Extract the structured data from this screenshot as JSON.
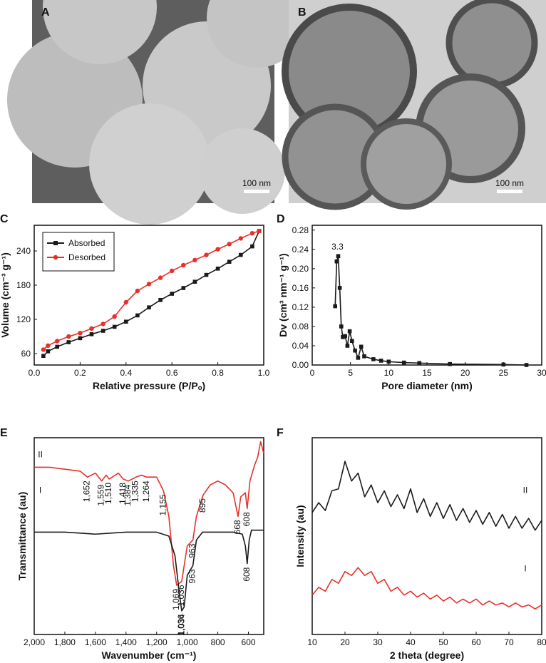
{
  "panels": {
    "A": {
      "letter": "A",
      "scale_bar": "100 nm"
    },
    "B": {
      "letter": "B",
      "scale_bar": "100 nm"
    }
  },
  "chart_data": [
    {
      "type": "line",
      "label": "C",
      "xlabel": "Relative pressure (P/Pₒ)",
      "ylabel": "Volume (cm⁻³ g⁻¹)",
      "xlim": [
        0,
        1
      ],
      "ylim": [
        40,
        285
      ],
      "xticks": [
        {
          "value": 0,
          "label": "0.0"
        },
        0.2,
        0.4,
        0.6,
        0.8,
        {
          "value": 1,
          "label": "1.0"
        }
      ],
      "yticks": [
        60,
        120,
        180,
        240
      ],
      "legend": "upper left",
      "x": [
        0.04,
        0.06,
        0.1,
        0.15,
        0.2,
        0.25,
        0.3,
        0.35,
        0.4,
        0.45,
        0.5,
        0.55,
        0.6,
        0.65,
        0.7,
        0.75,
        0.8,
        0.85,
        0.9,
        0.95,
        0.98
      ],
      "series": [
        {
          "name": "Absorbed",
          "color": "#1a1a1a",
          "marker": "square",
          "values": [
            56,
            64,
            72,
            80,
            87,
            94,
            100,
            107,
            116,
            127,
            141,
            154,
            165,
            175,
            186,
            198,
            209,
            221,
            233,
            248,
            275
          ]
        },
        {
          "name": "Desorbed",
          "color": "#e8302a",
          "marker": "circle",
          "values": [
            67,
            74,
            82,
            90,
            96,
            104,
            112,
            125,
            150,
            170,
            182,
            193,
            205,
            215,
            224,
            233,
            243,
            252,
            262,
            271,
            275
          ]
        }
      ]
    },
    {
      "type": "line",
      "label": "D",
      "xlabel": "Pore diameter (nm)",
      "ylabel": "Dv (cm³ nm⁻¹ g⁻¹)",
      "xlim": [
        0,
        30
      ],
      "ylim": [
        0,
        0.29
      ],
      "xticks": [
        0,
        5,
        10,
        15,
        20,
        25,
        30
      ],
      "yticks": [
        {
          "value": 0,
          "label": "0.00"
        },
        0.04,
        0.08,
        0.12,
        0.16,
        {
          "value": 0.2,
          "label": "0.20"
        },
        0.24,
        0.28
      ],
      "x": [
        3.0,
        3.2,
        3.4,
        3.6,
        3.8,
        4.0,
        4.3,
        4.6,
        4.9,
        5.2,
        5.6,
        6.0,
        6.4,
        6.8,
        8,
        9,
        10,
        12,
        14,
        18,
        25,
        28
      ],
      "series": [
        {
          "name": null,
          "color": "#1a1a1a",
          "marker": "square",
          "values": [
            0.122,
            0.215,
            0.226,
            0.16,
            0.08,
            0.058,
            0.06,
            0.04,
            0.07,
            0.05,
            0.03,
            0.015,
            0.038,
            0.018,
            0.012,
            0.009,
            0.007,
            0.005,
            0.004,
            0.002,
            0.001,
            0.0
          ]
        }
      ],
      "annotations": [
        {
          "text": "3.3",
          "x": 3.3,
          "y": 0.24
        }
      ]
    },
    {
      "type": "line",
      "label": "E",
      "xlabel": "Wavenumber (cm⁻¹)",
      "ylabel": "Transmittance (au)",
      "xlim": [
        2000,
        500
      ],
      "ylim": [
        0,
        100
      ],
      "xticks": [
        {
          "value": 2000,
          "label": "2,000"
        },
        {
          "value": 1800,
          "label": "1,800"
        },
        {
          "value": 1600,
          "label": "1,600"
        },
        {
          "value": 1400,
          "label": "1,400"
        },
        {
          "value": 1200,
          "label": "1,200"
        },
        {
          "value": 1000,
          "label": "1,000"
        },
        800,
        600
      ],
      "series": [
        {
          "name": null,
          "color": "#e8302a",
          "marker": null,
          "x": [
            2000,
            1900,
            1800,
            1700,
            1652,
            1600,
            1559,
            1530,
            1510,
            1450,
            1418,
            1384,
            1335,
            1300,
            1264,
            1200,
            1155,
            1120,
            1090,
            1069,
            1036,
            1000,
            963,
            940,
            900,
            895,
            850,
            800,
            750,
            700,
            668,
            650,
            620,
            608,
            590,
            560,
            540,
            520,
            500
          ],
          "values": [
            85,
            85,
            84,
            83,
            80,
            82,
            78,
            81,
            79,
            82,
            79,
            78,
            80,
            81,
            80,
            80,
            73,
            60,
            35,
            25,
            27,
            45,
            48,
            60,
            70,
            71,
            76,
            78,
            76,
            72,
            60,
            70,
            72,
            64,
            78,
            86,
            90,
            98,
            92
          ],
          "peaks": [
            {
              "value": 1652,
              "label": "1,652"
            },
            {
              "value": 1559,
              "label": "1,559"
            },
            {
              "value": 1510,
              "label": "1,510"
            },
            {
              "value": 1418,
              "label": "1,418"
            },
            {
              "value": 1384,
              "label": "1,384"
            },
            {
              "value": 1335,
              "label": "1,335"
            },
            {
              "value": 1264,
              "label": "1,264"
            },
            {
              "value": 1155,
              "label": "1,155"
            },
            {
              "value": 1069,
              "label": "1,069"
            },
            {
              "value": 1036,
              "label": "1,036"
            },
            {
              "value": 963,
              "label": "963"
            },
            {
              "value": 895,
              "label": "895"
            },
            {
              "value": 668,
              "label": "668"
            },
            {
              "value": 608,
              "label": "608"
            }
          ]
        },
        {
          "name": null,
          "color": "#1a1a1a",
          "marker": null,
          "x": [
            2000,
            1800,
            1600,
            1400,
            1200,
            1120,
            1080,
            1050,
            1036,
            1020,
            1000,
            963,
            940,
            900,
            800,
            700,
            640,
            620,
            608,
            595,
            580,
            500
          ],
          "values": [
            52,
            52,
            51,
            52,
            52,
            50,
            40,
            20,
            12,
            14,
            30,
            35,
            48,
            52,
            52,
            52,
            51,
            45,
            36,
            48,
            53,
            53
          ],
          "peaks": [
            {
              "value": 1036,
              "label": "1,036"
            },
            {
              "value": 1034,
              "label": "1,034"
            },
            {
              "value": 963,
              "label": "963"
            },
            {
              "value": 608,
              "label": "608"
            }
          ]
        }
      ],
      "annotations": [
        {
          "text": "II",
          "x": 1960,
          "y": 90
        },
        {
          "text": "I",
          "x": 1960,
          "y": 72
        }
      ]
    },
    {
      "type": "line",
      "label": "F",
      "xlabel": "2 theta (degree)",
      "ylabel": "Intensity (au)",
      "xlim": [
        10,
        80
      ],
      "ylim": [
        0,
        100
      ],
      "xticks": [
        10,
        20,
        30,
        40,
        50,
        60,
        70,
        80
      ],
      "x": [
        10,
        12,
        14,
        16,
        18,
        20,
        22,
        24,
        26,
        28,
        30,
        32,
        34,
        36,
        38,
        40,
        42,
        44,
        46,
        48,
        50,
        52,
        54,
        56,
        58,
        60,
        62,
        64,
        66,
        68,
        70,
        72,
        74,
        76,
        78,
        80
      ],
      "series": [
        {
          "name": null,
          "color": "#1a1a1a",
          "marker": null,
          "values": [
            62,
            67,
            63,
            73,
            74,
            88,
            78,
            82,
            70,
            76,
            67,
            73,
            65,
            71,
            64,
            74,
            62,
            69,
            60,
            67,
            59,
            66,
            58,
            64,
            57,
            63,
            56,
            62,
            55,
            61,
            54,
            60,
            54,
            59,
            53,
            58
          ]
        },
        {
          "name": null,
          "color": "#e8302a",
          "marker": null,
          "values": [
            20,
            24,
            22,
            28,
            26,
            32,
            30,
            34,
            30,
            32,
            26,
            28,
            22,
            24,
            20,
            22,
            19,
            21,
            18,
            20,
            17,
            19,
            16,
            18,
            16,
            18,
            15,
            17,
            15,
            16,
            14,
            16,
            14,
            15,
            13,
            15
          ]
        }
      ],
      "annotations": [
        {
          "text": "II",
          "x": 75,
          "y": 72
        },
        {
          "text": "I",
          "x": 75,
          "y": 32
        }
      ]
    }
  ]
}
